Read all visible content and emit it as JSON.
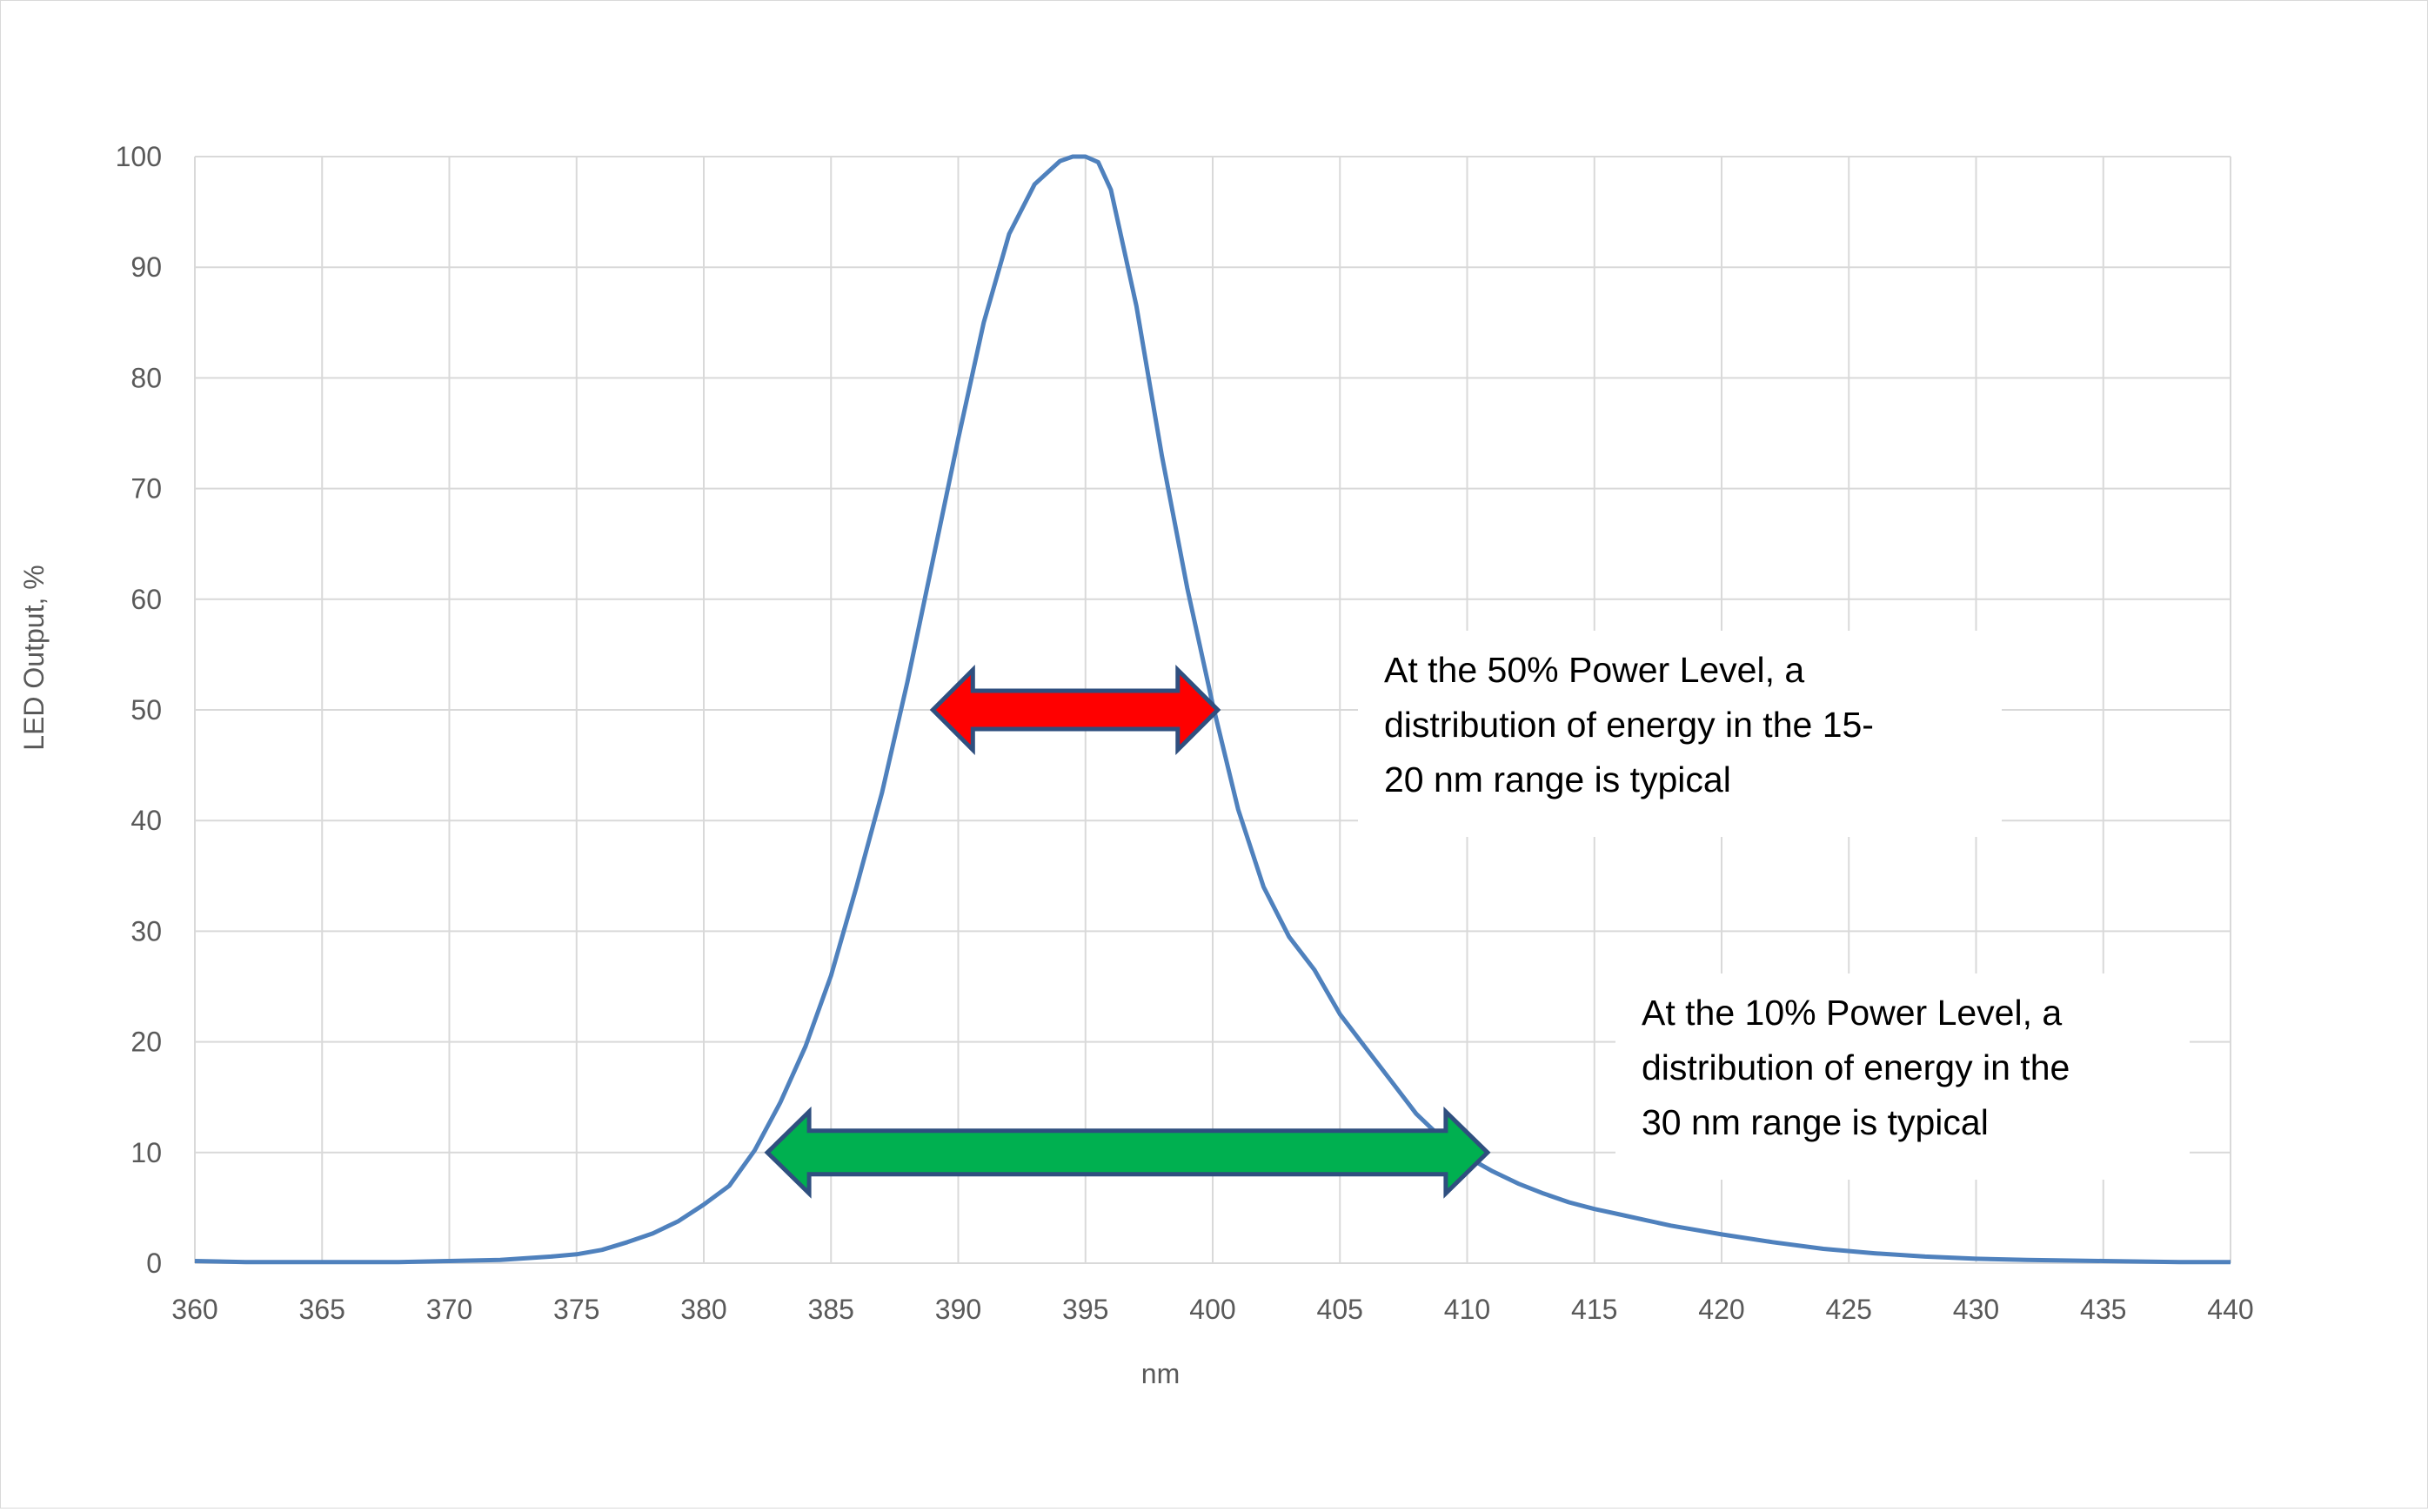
{
  "chart_data": {
    "type": "line",
    "xlabel": "nm",
    "ylabel": "LED Output,  %",
    "xlim": [
      360,
      440
    ],
    "ylim": [
      0,
      100
    ],
    "x_ticks": [
      "360",
      "365",
      "370",
      "375",
      "380",
      "385",
      "390",
      "395",
      "400",
      "405",
      "410",
      "415",
      "420",
      "425",
      "430",
      "435",
      "440"
    ],
    "y_ticks": [
      "0",
      "10",
      "20",
      "30",
      "40",
      "50",
      "60",
      "70",
      "80",
      "90",
      "100"
    ],
    "grid": true,
    "series": [
      {
        "color": "#4f81bd",
        "x": [
          360,
          362,
          364,
          366,
          368,
          370,
          372,
          374,
          375,
          376,
          377,
          378,
          379,
          380,
          381,
          382,
          383,
          384,
          385,
          386,
          387,
          388,
          389,
          390,
          391,
          392,
          393,
          394,
          394.5,
          395,
          395.5,
          396,
          397,
          398,
          399,
          400,
          401,
          402,
          403,
          404,
          405,
          406,
          407,
          408,
          409,
          410,
          411,
          412,
          413,
          414,
          415,
          416,
          417,
          418,
          419,
          420,
          422,
          424,
          426,
          428,
          430,
          432,
          435,
          438,
          440
        ],
        "y": [
          0.2,
          0.1,
          0.1,
          0.1,
          0.1,
          0.2,
          0.3,
          0.6,
          0.8,
          1.2,
          1.9,
          2.7,
          3.8,
          5.3,
          7.0,
          10.2,
          14.5,
          19.6,
          26.0,
          34.0,
          42.5,
          52.5,
          63.5,
          74.5,
          85.0,
          93.0,
          97.5,
          99.6,
          100,
          100,
          99.5,
          97.0,
          86.5,
          73.0,
          61.0,
          50.5,
          41.0,
          34.0,
          29.5,
          26.5,
          22.5,
          19.5,
          16.5,
          13.5,
          11.3,
          9.6,
          8.3,
          7.2,
          6.3,
          5.5,
          4.9,
          4.4,
          3.9,
          3.4,
          3.0,
          2.6,
          1.9,
          1.3,
          0.9,
          0.6,
          0.4,
          0.3,
          0.2,
          0.1,
          0.1
        ]
      }
    ],
    "annotations": [
      {
        "text": "At the 50% Power Level, a distribution of energy in the 15-20 nm range is typical",
        "lines": [
          "At the 50% Power Level, a",
          "distribution of energy in the 15-",
          "20 nm range is typical"
        ],
        "color": "#ff0000",
        "x_from": 389,
        "x_to": 400.2,
        "y": 50
      },
      {
        "text": "At the 10% Power Level, a distribution of energy in the 30 nm range is typical",
        "lines": [
          "At the 10% Power Level, a",
          "distribution of energy in the",
          "30 nm range is typical"
        ],
        "color": "#00b050",
        "x_from": 382.5,
        "x_to": 410.8,
        "y": 10
      }
    ]
  }
}
